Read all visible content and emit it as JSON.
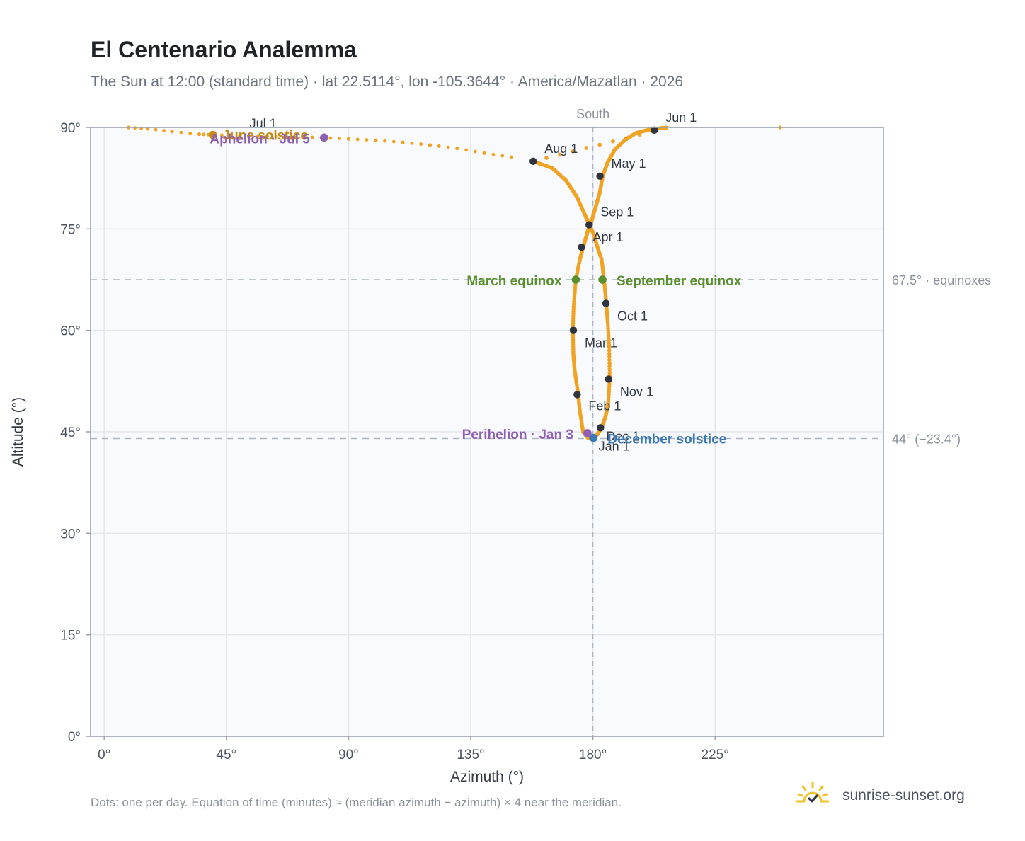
{
  "header": {
    "title": "El Centenario Analemma",
    "subtitle": "The Sun at 12:00 (standard time) · lat 22.5114°, lon -105.3644° · America/Mazatlan · 2026"
  },
  "footer": {
    "note": "Dots: one per day. Equation of time (minutes) ≈ (meridian azimuth − azimuth) × 4 near the meridian.",
    "brand": "sunrise-sunset.org"
  },
  "colors": {
    "curve": "#f0a323",
    "month_dot": "#2f343d",
    "equinox": "#5a8f2e",
    "solstice_dec": "#3a78b8",
    "solstice_jun": "#c98a12",
    "apsis": "#8e5fb5",
    "grid": "#e3e7ed",
    "ref_line": "#aeb6c1",
    "plot_bg": "#f8fafd",
    "frame": "#9aa3b0"
  },
  "chart_data": {
    "type": "scatter",
    "xlabel": "Azimuth (°)",
    "ylabel": "Altitude (°)",
    "xlim": [
      -5,
      287
    ],
    "ylim": [
      0,
      90
    ],
    "x_ticks": [
      {
        "value": 0,
        "label": "0°"
      },
      {
        "value": 45,
        "label": "45°"
      },
      {
        "value": 90,
        "label": "90°"
      },
      {
        "value": 135,
        "label": "135°"
      },
      {
        "value": 180,
        "label": "180°"
      },
      {
        "value": 225,
        "label": "225°"
      }
    ],
    "y_ticks": [
      {
        "value": 0,
        "label": "0°"
      },
      {
        "value": 15,
        "label": "15°"
      },
      {
        "value": 30,
        "label": "30°"
      },
      {
        "value": 45,
        "label": "45°"
      },
      {
        "value": 60,
        "label": "60°"
      },
      {
        "value": 75,
        "label": "75°"
      },
      {
        "value": 90,
        "label": "90°"
      }
    ],
    "grid": true,
    "reference_lines": {
      "vertical": {
        "x": 180,
        "label": "South"
      },
      "horizontal": [
        {
          "y": 67.5,
          "label": "67.5° · equinoxes"
        },
        {
          "y": 44,
          "label": "44° (−23.4°)"
        }
      ]
    },
    "daily_path": [
      [
        178.2,
        44.1
      ],
      [
        176.4,
        45.0
      ],
      [
        175.2,
        48.0
      ],
      [
        174.6,
        50.5
      ],
      [
        173.3,
        54.0
      ],
      [
        172.8,
        56.5
      ],
      [
        172.6,
        60.0
      ],
      [
        172.9,
        63.5
      ],
      [
        173.7,
        67.5
      ],
      [
        175.2,
        70.5
      ],
      [
        176.4,
        72.3
      ],
      [
        178.0,
        74.5
      ],
      [
        179.6,
        76.3
      ],
      [
        181.2,
        78.5
      ],
      [
        182.6,
        80.5
      ],
      [
        183.6,
        82.8
      ],
      [
        185.4,
        84.8
      ],
      [
        188.2,
        86.8
      ],
      [
        192.0,
        88.2
      ],
      [
        196.0,
        89.2
      ],
      [
        200.0,
        89.6
      ],
      [
        205.0,
        89.9
      ],
      [
        207.0,
        89.9
      ],
      [
        249.0,
        90.0
      ],
      [
        80.0,
        88.5
      ],
      [
        100.0,
        88.0
      ],
      [
        115.0,
        87.5
      ],
      [
        125.0,
        87.0
      ],
      [
        135.0,
        86.4
      ],
      [
        145.0,
        85.7
      ],
      [
        150.0,
        85.4
      ],
      [
        155.0,
        85.1
      ],
      [
        158.0,
        85.0
      ],
      [
        165.0,
        84.0
      ],
      [
        170.0,
        82.2
      ],
      [
        174.0,
        79.8
      ],
      [
        176.7,
        77.4
      ],
      [
        178.6,
        75.7
      ],
      [
        180.5,
        74.0
      ],
      [
        181.5,
        72.5
      ],
      [
        183.2,
        70.5
      ],
      [
        184.1,
        67.5
      ],
      [
        184.9,
        64.0
      ],
      [
        185.5,
        61.0
      ],
      [
        186.0,
        57.5
      ],
      [
        186.2,
        52.8
      ],
      [
        185.6,
        49.0
      ],
      [
        184.6,
        47.2
      ],
      [
        183.2,
        45.6
      ],
      [
        181.6,
        44.6
      ],
      [
        180.2,
        44.1
      ]
    ],
    "summer_tail": [
      [
        9,
        90.0
      ],
      [
        16,
        89.8
      ],
      [
        25,
        89.4
      ],
      [
        35,
        89.0
      ],
      [
        40,
        88.9
      ],
      [
        50,
        88.8
      ],
      [
        60,
        88.7
      ],
      [
        70,
        88.6
      ],
      [
        80,
        88.5
      ],
      [
        90,
        88.3
      ],
      [
        100,
        88.1
      ],
      [
        110,
        87.8
      ],
      [
        120,
        87.4
      ],
      [
        130,
        86.9
      ],
      [
        140,
        86.2
      ],
      [
        150,
        85.6
      ],
      [
        207,
        90.0
      ],
      [
        249,
        90.0
      ]
    ],
    "month_markers": [
      {
        "label": "Jan 1",
        "x": 180.0,
        "y": 44.1
      },
      {
        "label": "Feb 1",
        "x": 174.2,
        "y": 50.5
      },
      {
        "label": "Mar 1",
        "x": 172.8,
        "y": 60.0
      },
      {
        "label": "Apr 1",
        "x": 175.8,
        "y": 72.3
      },
      {
        "label": "May 1",
        "x": 182.6,
        "y": 82.8
      },
      {
        "label": "Jun 1",
        "x": 202.6,
        "y": 89.6
      },
      {
        "label": "Jul 1",
        "x": 40.0,
        "y": 88.9
      },
      {
        "label": "Aug 1",
        "x": 158.0,
        "y": 85.0
      },
      {
        "label": "Sep 1",
        "x": 178.6,
        "y": 75.6
      },
      {
        "label": "Oct 1",
        "x": 184.8,
        "y": 64.0
      },
      {
        "label": "Nov 1",
        "x": 185.8,
        "y": 52.8
      },
      {
        "label": "Dec 1",
        "x": 182.8,
        "y": 45.6
      }
    ],
    "events": [
      {
        "label": "March equinox",
        "x": 173.7,
        "y": 67.5,
        "kind": "equinox"
      },
      {
        "label": "September equinox",
        "x": 183.5,
        "y": 67.5,
        "kind": "equinox"
      },
      {
        "label": "December solstice",
        "x": 180.2,
        "y": 44.1,
        "kind": "solstice_dec"
      },
      {
        "label": "June solstice",
        "x": 40.0,
        "y": 88.9,
        "kind": "solstice_jun"
      },
      {
        "label": "Perihelion · Jan 3",
        "x": 178.0,
        "y": 44.8,
        "kind": "apsis"
      },
      {
        "label": "Aphelion · Jul 5",
        "x": 81.0,
        "y": 88.5,
        "kind": "apsis"
      }
    ]
  }
}
